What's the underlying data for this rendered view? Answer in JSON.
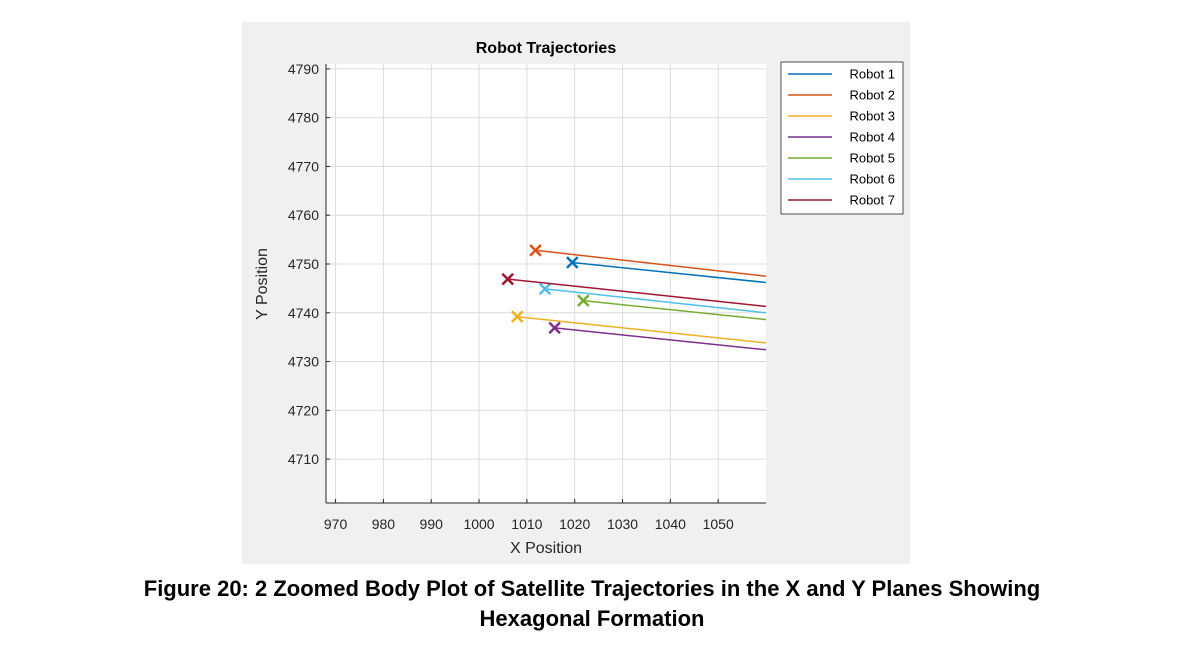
{
  "chart_data": {
    "type": "line",
    "title": "Robot Trajectories",
    "xlabel": "X Position",
    "ylabel": "Y Position",
    "xlim": [
      968,
      1060
    ],
    "ylim": [
      4701,
      4791
    ],
    "xticks": [
      970,
      980,
      990,
      1000,
      1010,
      1020,
      1030,
      1040,
      1050
    ],
    "yticks": [
      4710,
      4720,
      4730,
      4740,
      4750,
      4760,
      4770,
      4780,
      4790
    ],
    "grid": true,
    "legend_position": "outside-top-right",
    "series": [
      {
        "name": "Robot 1",
        "color": "#0072BD",
        "x": [
          1019.5,
          1060
        ],
        "y": [
          4750.3,
          4746.2
        ]
      },
      {
        "name": "Robot 2",
        "color": "#D95319",
        "x": [
          1011.8,
          1060
        ],
        "y": [
          4752.8,
          4747.5
        ]
      },
      {
        "name": "Robot 3",
        "color": "#EDB120",
        "x": [
          1008.0,
          1060
        ],
        "y": [
          4739.2,
          4733.8
        ]
      },
      {
        "name": "Robot 4",
        "color": "#7E2F8E",
        "x": [
          1015.8,
          1060
        ],
        "y": [
          4736.9,
          4732.4
        ]
      },
      {
        "name": "Robot 5",
        "color": "#77AC30",
        "x": [
          1021.8,
          1060
        ],
        "y": [
          4742.5,
          4738.6
        ]
      },
      {
        "name": "Robot 6",
        "color": "#4DBEEE",
        "x": [
          1013.8,
          1060
        ],
        "y": [
          4744.9,
          4740.0
        ]
      },
      {
        "name": "Robot 7",
        "color": "#A2142F",
        "x": [
          1006.0,
          1060
        ],
        "y": [
          4746.9,
          4741.3
        ]
      }
    ]
  },
  "caption": {
    "line1": "Figure 20:  2 Zoomed Body Plot of Satellite Trajectories in the X and Y Planes Showing",
    "line2": "Hexagonal Formation"
  }
}
